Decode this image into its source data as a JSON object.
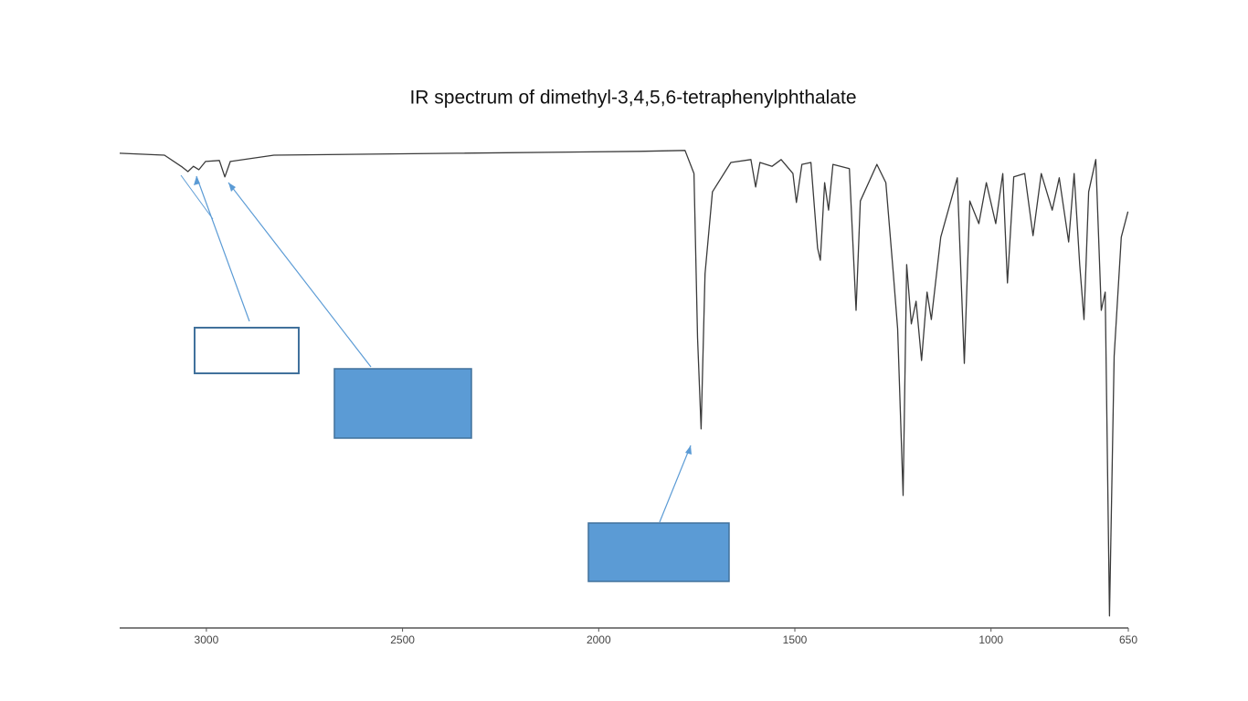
{
  "chart_data": {
    "type": "line",
    "title": "IR spectrum of dimethyl-3,4,5,6-tetraphenylphthalate",
    "x": [
      3221,
      3107,
      3061,
      3047,
      3033,
      3019,
      3002,
      2967,
      2953,
      2939,
      2828,
      2362,
      1896,
      1780,
      1757,
      1748,
      1739,
      1729,
      1710,
      1663,
      1612,
      1600,
      1589,
      1558,
      1535,
      1505,
      1496,
      1482,
      1459,
      1442,
      1435,
      1424,
      1414,
      1403,
      1361,
      1344,
      1333,
      1291,
      1268,
      1249,
      1238,
      1224,
      1215,
      1203,
      1191,
      1177,
      1163,
      1152,
      1128,
      1086,
      1068,
      1054,
      1031,
      1012,
      988,
      970,
      958,
      942,
      914,
      893,
      872,
      844,
      826,
      802,
      788,
      774,
      763,
      751,
      733,
      719,
      709,
      698,
      686,
      668,
      651
    ],
    "values": [
      98.5,
      98.1,
      95.6,
      94.7,
      95.8,
      95.1,
      96.8,
      97.0,
      93.6,
      96.8,
      98.1,
      98.5,
      98.9,
      99.1,
      94.3,
      60.2,
      41.3,
      73.5,
      90.5,
      96.6,
      97.2,
      91.5,
      96.6,
      95.8,
      97.2,
      94.3,
      88.3,
      96.2,
      96.6,
      78.8,
      76.3,
      92.4,
      86.7,
      96.2,
      95.3,
      65.9,
      88.6,
      96.2,
      92.4,
      73.5,
      62.1,
      27.5,
      75.4,
      63.1,
      67.8,
      55.5,
      69.7,
      64.0,
      81.1,
      93.4,
      54.9,
      88.6,
      83.9,
      92.4,
      83.9,
      94.3,
      71.6,
      93.6,
      94.3,
      81.4,
      94.3,
      86.7,
      93.4,
      80.1,
      94.3,
      75.4,
      64.0,
      90.5,
      97.2,
      65.9,
      69.7,
      2.5,
      56.4,
      81.1,
      86.4
    ],
    "color": "#3a3a3a",
    "xlim": [
      3221,
      650
    ],
    "ylim": [
      0,
      100
    ],
    "xticks": [
      3000,
      2500,
      2000,
      1500,
      1000,
      650
    ]
  }
}
